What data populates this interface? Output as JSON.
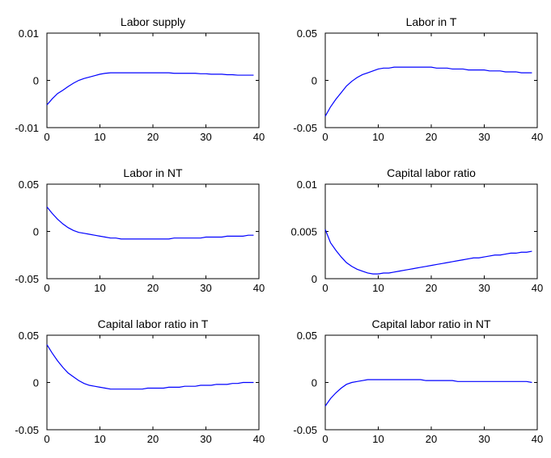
{
  "chart_data": [
    {
      "type": "line",
      "title": "Labor supply",
      "xlabel": "",
      "ylabel": "",
      "xlim": [
        0,
        40
      ],
      "ylim": [
        -0.01,
        0.01
      ],
      "xticks": [
        0,
        10,
        20,
        30,
        40
      ],
      "yticks": [
        -0.01,
        0,
        0.01
      ],
      "xtick_labels": [
        "0",
        "10",
        "20",
        "30",
        "40"
      ],
      "ytick_labels": [
        "-0.01",
        "0",
        "0.01"
      ],
      "series": [
        {
          "color": "#0000ff",
          "x": [
            0,
            1,
            2,
            3,
            4,
            5,
            6,
            7,
            8,
            9,
            10,
            11,
            12,
            13,
            14,
            15,
            16,
            17,
            18,
            19,
            20,
            21,
            22,
            23,
            24,
            25,
            26,
            27,
            28,
            29,
            30,
            31,
            32,
            33,
            34,
            35,
            36,
            37,
            38,
            39
          ],
          "y": [
            -0.0052,
            -0.0039,
            -0.0028,
            -0.0021,
            -0.0013,
            -0.0006,
            0.0,
            0.0004,
            0.0007,
            0.001,
            0.0013,
            0.0015,
            0.0016,
            0.0016,
            0.0016,
            0.0016,
            0.0016,
            0.0016,
            0.0016,
            0.0016,
            0.0016,
            0.0016,
            0.0016,
            0.0016,
            0.0015,
            0.0015,
            0.0015,
            0.0015,
            0.0015,
            0.0014,
            0.0014,
            0.0013,
            0.0013,
            0.0013,
            0.0012,
            0.0012,
            0.0011,
            0.0011,
            0.0011,
            0.0011
          ]
        }
      ]
    },
    {
      "type": "line",
      "title": "Labor in T",
      "xlabel": "",
      "ylabel": "",
      "xlim": [
        0,
        40
      ],
      "ylim": [
        -0.05,
        0.05
      ],
      "xticks": [
        0,
        10,
        20,
        30,
        40
      ],
      "yticks": [
        -0.05,
        0,
        0.05
      ],
      "xtick_labels": [
        "0",
        "10",
        "20",
        "30",
        "40"
      ],
      "ytick_labels": [
        "-0.05",
        "0",
        "0.05"
      ],
      "series": [
        {
          "color": "#0000ff",
          "x": [
            0,
            1,
            2,
            3,
            4,
            5,
            6,
            7,
            8,
            9,
            10,
            11,
            12,
            13,
            14,
            15,
            16,
            17,
            18,
            19,
            20,
            21,
            22,
            23,
            24,
            25,
            26,
            27,
            28,
            29,
            30,
            31,
            32,
            33,
            34,
            35,
            36,
            37,
            38,
            39
          ],
          "y": [
            -0.038,
            -0.028,
            -0.02,
            -0.013,
            -0.006,
            -0.001,
            0.003,
            0.006,
            0.008,
            0.01,
            0.012,
            0.013,
            0.013,
            0.014,
            0.014,
            0.014,
            0.014,
            0.014,
            0.014,
            0.014,
            0.014,
            0.013,
            0.013,
            0.013,
            0.012,
            0.012,
            0.012,
            0.011,
            0.011,
            0.011,
            0.011,
            0.01,
            0.01,
            0.01,
            0.009,
            0.009,
            0.009,
            0.008,
            0.008,
            0.008
          ]
        }
      ]
    },
    {
      "type": "line",
      "title": "Labor in NT",
      "xlabel": "",
      "ylabel": "",
      "xlim": [
        0,
        40
      ],
      "ylim": [
        -0.05,
        0.05
      ],
      "xticks": [
        0,
        10,
        20,
        30,
        40
      ],
      "yticks": [
        -0.05,
        0,
        0.05
      ],
      "xtick_labels": [
        "0",
        "10",
        "20",
        "30",
        "40"
      ],
      "ytick_labels": [
        "-0.05",
        "0",
        "0.05"
      ],
      "series": [
        {
          "color": "#0000ff",
          "x": [
            0,
            1,
            2,
            3,
            4,
            5,
            6,
            7,
            8,
            9,
            10,
            11,
            12,
            13,
            14,
            15,
            16,
            17,
            18,
            19,
            20,
            21,
            22,
            23,
            24,
            25,
            26,
            27,
            28,
            29,
            30,
            31,
            32,
            33,
            34,
            35,
            36,
            37,
            38,
            39
          ],
          "y": [
            0.026,
            0.019,
            0.013,
            0.008,
            0.004,
            0.001,
            -0.001,
            -0.002,
            -0.003,
            -0.004,
            -0.005,
            -0.006,
            -0.007,
            -0.007,
            -0.008,
            -0.008,
            -0.008,
            -0.008,
            -0.008,
            -0.008,
            -0.008,
            -0.008,
            -0.008,
            -0.008,
            -0.007,
            -0.007,
            -0.007,
            -0.007,
            -0.007,
            -0.007,
            -0.006,
            -0.006,
            -0.006,
            -0.006,
            -0.005,
            -0.005,
            -0.005,
            -0.005,
            -0.004,
            -0.004
          ]
        }
      ]
    },
    {
      "type": "line",
      "title": "Capital labor ratio",
      "xlabel": "",
      "ylabel": "",
      "xlim": [
        0,
        40
      ],
      "ylim": [
        0,
        0.01
      ],
      "xticks": [
        0,
        10,
        20,
        30,
        40
      ],
      "yticks": [
        0,
        0.005,
        0.01
      ],
      "xtick_labels": [
        "0",
        "10",
        "20",
        "30",
        "40"
      ],
      "ytick_labels": [
        "0",
        "0.005",
        "0.01"
      ],
      "series": [
        {
          "color": "#0000ff",
          "x": [
            0,
            1,
            2,
            3,
            4,
            5,
            6,
            7,
            8,
            9,
            10,
            11,
            12,
            13,
            14,
            15,
            16,
            17,
            18,
            19,
            20,
            21,
            22,
            23,
            24,
            25,
            26,
            27,
            28,
            29,
            30,
            31,
            32,
            33,
            34,
            35,
            36,
            37,
            38,
            39
          ],
          "y": [
            0.0052,
            0.0038,
            0.003,
            0.0023,
            0.0017,
            0.0013,
            0.001,
            0.0008,
            0.0006,
            0.0005,
            0.0005,
            0.0006,
            0.0006,
            0.0007,
            0.0008,
            0.0009,
            0.001,
            0.0011,
            0.0012,
            0.0013,
            0.0014,
            0.0015,
            0.0016,
            0.0017,
            0.0018,
            0.0019,
            0.002,
            0.0021,
            0.0022,
            0.0022,
            0.0023,
            0.0024,
            0.0025,
            0.0025,
            0.0026,
            0.0027,
            0.0027,
            0.0028,
            0.0028,
            0.0029
          ]
        }
      ]
    },
    {
      "type": "line",
      "title": "Capital labor ratio in T",
      "xlabel": "",
      "ylabel": "",
      "xlim": [
        0,
        40
      ],
      "ylim": [
        -0.05,
        0.05
      ],
      "xticks": [
        0,
        10,
        20,
        30,
        40
      ],
      "yticks": [
        -0.05,
        0,
        0.05
      ],
      "xtick_labels": [
        "0",
        "10",
        "20",
        "30",
        "40"
      ],
      "ytick_labels": [
        "-0.05",
        "0",
        "0.05"
      ],
      "series": [
        {
          "color": "#0000ff",
          "x": [
            0,
            1,
            2,
            3,
            4,
            5,
            6,
            7,
            8,
            9,
            10,
            11,
            12,
            13,
            14,
            15,
            16,
            17,
            18,
            19,
            20,
            21,
            22,
            23,
            24,
            25,
            26,
            27,
            28,
            29,
            30,
            31,
            32,
            33,
            34,
            35,
            36,
            37,
            38,
            39
          ],
          "y": [
            0.04,
            0.031,
            0.023,
            0.016,
            0.01,
            0.006,
            0.002,
            -0.001,
            -0.003,
            -0.004,
            -0.005,
            -0.006,
            -0.007,
            -0.007,
            -0.007,
            -0.007,
            -0.007,
            -0.007,
            -0.007,
            -0.006,
            -0.006,
            -0.006,
            -0.006,
            -0.005,
            -0.005,
            -0.005,
            -0.004,
            -0.004,
            -0.004,
            -0.003,
            -0.003,
            -0.003,
            -0.002,
            -0.002,
            -0.002,
            -0.001,
            -0.001,
            0.0,
            0.0,
            0.0
          ]
        }
      ]
    },
    {
      "type": "line",
      "title": "Capital labor ratio in NT",
      "xlabel": "",
      "ylabel": "",
      "xlim": [
        0,
        40
      ],
      "ylim": [
        -0.05,
        0.05
      ],
      "xticks": [
        0,
        10,
        20,
        30,
        40
      ],
      "yticks": [
        -0.05,
        0,
        0.05
      ],
      "xtick_labels": [
        "0",
        "10",
        "20",
        "30",
        "40"
      ],
      "ytick_labels": [
        "-0.05",
        "0",
        "0.05"
      ],
      "series": [
        {
          "color": "#0000ff",
          "x": [
            0,
            1,
            2,
            3,
            4,
            5,
            6,
            7,
            8,
            9,
            10,
            11,
            12,
            13,
            14,
            15,
            16,
            17,
            18,
            19,
            20,
            21,
            22,
            23,
            24,
            25,
            26,
            27,
            28,
            29,
            30,
            31,
            32,
            33,
            34,
            35,
            36,
            37,
            38,
            39
          ],
          "y": [
            -0.025,
            -0.017,
            -0.011,
            -0.006,
            -0.002,
            0.0,
            0.001,
            0.002,
            0.003,
            0.003,
            0.003,
            0.003,
            0.003,
            0.003,
            0.003,
            0.003,
            0.003,
            0.003,
            0.003,
            0.002,
            0.002,
            0.002,
            0.002,
            0.002,
            0.002,
            0.001,
            0.001,
            0.001,
            0.001,
            0.001,
            0.001,
            0.001,
            0.001,
            0.001,
            0.001,
            0.001,
            0.001,
            0.001,
            0.001,
            0.0
          ]
        }
      ]
    }
  ]
}
